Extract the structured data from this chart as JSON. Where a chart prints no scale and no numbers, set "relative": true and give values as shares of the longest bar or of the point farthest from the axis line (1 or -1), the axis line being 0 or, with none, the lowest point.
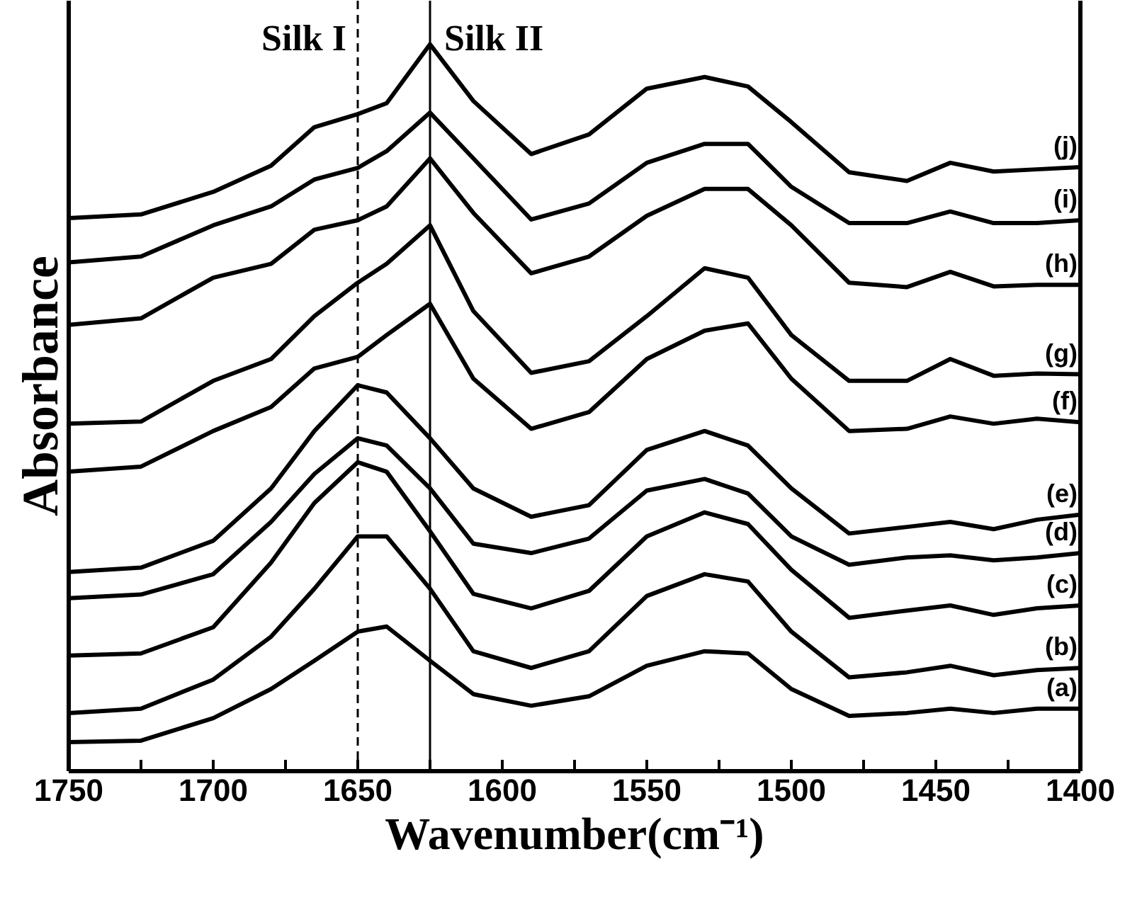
{
  "chart_data": {
    "type": "line",
    "relative": true,
    "xlabel": "Wavenumber(cm⁻¹)",
    "ylabel": "Absorbance",
    "grid": false,
    "tick_labels": "x",
    "line_style": "solid",
    "marker": "none",
    "x": [
      1750,
      1725,
      1700,
      1680,
      1665,
      1650,
      1640,
      1625,
      1610,
      1590,
      1570,
      1550,
      1530,
      1515,
      1500,
      1480,
      1460,
      1445,
      1430,
      1415,
      1400
    ],
    "xlim": [
      1750,
      1400
    ],
    "xticks": [
      1750,
      {
        "value": 1725,
        "label": null
      },
      1700,
      {
        "value": 1675,
        "label": null
      },
      1650,
      {
        "value": 1625,
        "label": null
      },
      1600,
      {
        "value": 1575,
        "label": null
      },
      1550,
      {
        "value": 1525,
        "label": null
      },
      1500,
      {
        "value": 1475,
        "label": null
      },
      1450,
      {
        "value": 1425,
        "label": null
      },
      1400
    ],
    "ref_lines": [
      {
        "axis": "x",
        "value": 1650,
        "label": "Silk I",
        "line_style": "dashed",
        "color": "#000000"
      },
      {
        "axis": "x",
        "value": 1625,
        "label": "Silk II",
        "line_style": "solid",
        "color": "#000000"
      }
    ],
    "series": [
      {
        "name": "(a)",
        "color": "#000000",
        "values": [
          0.04,
          0.042,
          0.073,
          0.113,
          0.152,
          0.192,
          0.199,
          0.152,
          0.106,
          0.09,
          0.103,
          0.145,
          0.165,
          0.162,
          0.113,
          0.076,
          0.08,
          0.086,
          0.08,
          0.086,
          0.086
        ]
      },
      {
        "name": "(b)",
        "color": "#000000",
        "values": [
          0.08,
          0.086,
          0.126,
          0.185,
          0.251,
          0.323,
          0.323,
          0.251,
          0.165,
          0.142,
          0.165,
          0.241,
          0.271,
          0.261,
          0.192,
          0.129,
          0.136,
          0.145,
          0.132,
          0.139,
          0.142
        ]
      },
      {
        "name": "(c)",
        "color": "#000000",
        "values": [
          0.159,
          0.162,
          0.198,
          0.287,
          0.369,
          0.425,
          0.412,
          0.33,
          0.244,
          0.224,
          0.248,
          0.323,
          0.356,
          0.34,
          0.277,
          0.211,
          0.221,
          0.228,
          0.215,
          0.224,
          0.228
        ]
      },
      {
        "name": "(d)",
        "color": "#000000",
        "values": [
          0.238,
          0.243,
          0.271,
          0.343,
          0.409,
          0.458,
          0.448,
          0.389,
          0.313,
          0.3,
          0.32,
          0.386,
          0.402,
          0.382,
          0.323,
          0.284,
          0.294,
          0.297,
          0.29,
          0.294,
          0.3
        ]
      },
      {
        "name": "(e)",
        "color": "#000000",
        "values": [
          0.274,
          0.28,
          0.317,
          0.389,
          0.468,
          0.531,
          0.521,
          0.458,
          0.389,
          0.35,
          0.366,
          0.442,
          0.468,
          0.448,
          0.389,
          0.327,
          0.336,
          0.343,
          0.333,
          0.346,
          0.353
        ]
      },
      {
        "name": "(f)",
        "color": "#000000",
        "values": [
          0.412,
          0.419,
          0.468,
          0.501,
          0.554,
          0.57,
          0.6,
          0.643,
          0.54,
          0.471,
          0.494,
          0.567,
          0.606,
          0.616,
          0.54,
          0.468,
          0.471,
          0.488,
          0.478,
          0.485,
          0.48
        ]
      },
      {
        "name": "(g)",
        "color": "#000000",
        "values": [
          0.478,
          0.481,
          0.537,
          0.567,
          0.626,
          0.672,
          0.698,
          0.751,
          0.633,
          0.548,
          0.564,
          0.626,
          0.692,
          0.679,
          0.6,
          0.537,
          0.537,
          0.567,
          0.544,
          0.547,
          0.546
        ]
      },
      {
        "name": "(h)",
        "color": "#000000",
        "values": [
          0.614,
          0.623,
          0.679,
          0.698,
          0.745,
          0.758,
          0.777,
          0.843,
          0.768,
          0.685,
          0.708,
          0.764,
          0.801,
          0.801,
          0.751,
          0.672,
          0.666,
          0.687,
          0.667,
          0.669,
          0.669
        ]
      },
      {
        "name": "(i)",
        "color": "#000000",
        "values": [
          0.7,
          0.708,
          0.751,
          0.777,
          0.814,
          0.83,
          0.853,
          0.906,
          0.843,
          0.759,
          0.781,
          0.837,
          0.863,
          0.863,
          0.804,
          0.754,
          0.754,
          0.77,
          0.754,
          0.754,
          0.758
        ]
      },
      {
        "name": "(j)",
        "color": "#000000",
        "values": [
          0.761,
          0.766,
          0.797,
          0.833,
          0.886,
          0.904,
          0.919,
          1.0,
          0.922,
          0.849,
          0.876,
          0.939,
          0.955,
          0.942,
          0.893,
          0.824,
          0.812,
          0.837,
          0.825,
          0.828,
          0.831
        ]
      }
    ]
  }
}
